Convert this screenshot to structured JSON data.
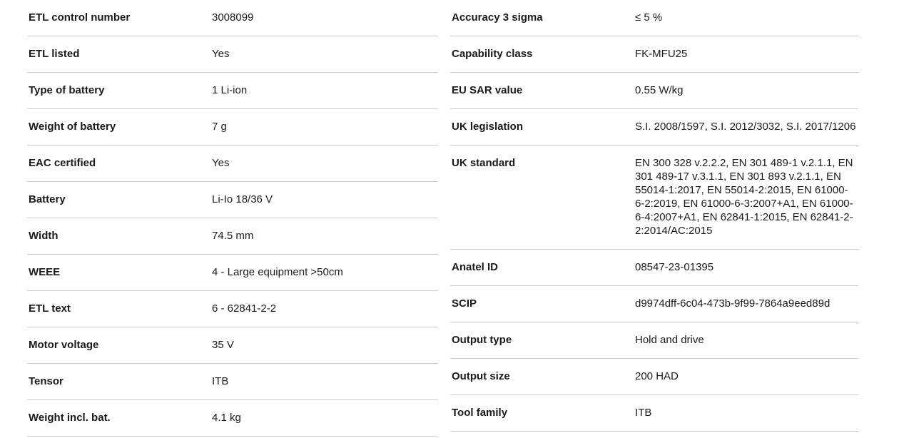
{
  "meta": {
    "background_color": "#ffffff",
    "divider_color": "#c9c9c9",
    "text_color": "#1a1a1a"
  },
  "spec_table": {
    "left_column": [
      {
        "label": "ETL control number",
        "value": "3008099"
      },
      {
        "label": "ETL listed",
        "value": "Yes"
      },
      {
        "label": "Type of battery",
        "value": "1 Li-ion"
      },
      {
        "label": "Weight of battery",
        "value": "7 g"
      },
      {
        "label": "EAC certified",
        "value": "Yes"
      },
      {
        "label": "Battery",
        "value": "Li-Io 18/36 V"
      },
      {
        "label": "Width",
        "value": "74.5 mm"
      },
      {
        "label": "WEEE",
        "value": "4 - Large equipment >50cm"
      },
      {
        "label": "ETL text",
        "value": "6 - 62841-2-2"
      },
      {
        "label": "Motor voltage",
        "value": "35 V"
      },
      {
        "label": "Tensor",
        "value": "ITB"
      },
      {
        "label": "Weight incl. bat.",
        "value": "4.1 kg"
      }
    ],
    "right_column": [
      {
        "label": "Accuracy 3 sigma",
        "value": "≤ 5 %"
      },
      {
        "label": "Capability class",
        "value": "FK-MFU25"
      },
      {
        "label": "EU SAR value",
        "value": "0.55 W/kg"
      },
      {
        "label": "UK legislation",
        "value": "S.I. 2008/1597, S.I. 2012/3032, S.I. 2017/1206"
      },
      {
        "label": "UK standard",
        "value": "EN 300 328 v.2.2.2, EN 301 489-1 v.2.1.1, EN 301 489-17 v.3.1.1, EN 301 893 v.2.1.1, EN 55014-1:2017, EN 55014-2:2015, EN 61000-6-2:2019, EN 61000-6-3:2007+A1, EN 61000-6-4:2007+A1, EN 62841-1:2015, EN 62841-2-2:2014/AC:2015"
      },
      {
        "label": "Anatel ID",
        "value": "08547-23-01395"
      },
      {
        "label": "SCIP",
        "value": "d9974dff-6c04-473b-9f99-7864a9eed89d"
      },
      {
        "label": "Output type",
        "value": "Hold and drive"
      },
      {
        "label": "Output size",
        "value": "200 HAD"
      },
      {
        "label": "Tool family",
        "value": "ITB"
      }
    ]
  }
}
